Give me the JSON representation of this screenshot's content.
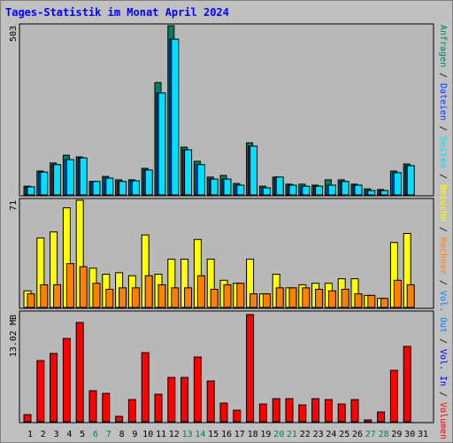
{
  "chart_data": [
    {
      "type": "bar",
      "title": "Tages-Statistik im Monat April 2024",
      "ylim": [
        0,
        503
      ],
      "yticks": [
        503
      ],
      "series": [
        {
          "name": "Anfragen",
          "color": "#00805c",
          "values": [
            26,
            71,
            95,
            118,
            113,
            40,
            55,
            45,
            45,
            79,
            334,
            503,
            142,
            100,
            53,
            58,
            34,
            155,
            26,
            53,
            32,
            32,
            29,
            45,
            45,
            32,
            18,
            16,
            71,
            92,
            0
          ]
        },
        {
          "name": "Dateien",
          "color": "#0040ff",
          "values": [
            24,
            68,
            90,
            105,
            110,
            40,
            50,
            40,
            42,
            74,
            303,
            463,
            134,
            90,
            47,
            47,
            29,
            145,
            21,
            53,
            29,
            26,
            26,
            29,
            40,
            29,
            13,
            13,
            66,
            87,
            0
          ]
        },
        {
          "name": "Seiten",
          "color": "#00e0ff",
          "values": [
            24,
            68,
            90,
            105,
            110,
            40,
            50,
            40,
            42,
            74,
            303,
            463,
            134,
            90,
            47,
            47,
            29,
            145,
            21,
            53,
            29,
            26,
            26,
            29,
            40,
            29,
            13,
            13,
            66,
            87,
            0
          ]
        }
      ]
    },
    {
      "type": "bar",
      "ylim": [
        0,
        71
      ],
      "yticks": [
        71
      ],
      "series": [
        {
          "name": "Besuche",
          "color": "#ffff00",
          "values": [
            11,
            46,
            50,
            66,
            71,
            26,
            22,
            23,
            21,
            48,
            22,
            32,
            32,
            45,
            32,
            18,
            16,
            32,
            9,
            22,
            13,
            15,
            16,
            16,
            19,
            19,
            8,
            6,
            43,
            49,
            0
          ]
        },
        {
          "name": "Rechner",
          "color": "#ff8000",
          "values": [
            9,
            15,
            15,
            29,
            27,
            16,
            12,
            13,
            13,
            21,
            15,
            13,
            13,
            21,
            12,
            15,
            16,
            9,
            9,
            13,
            13,
            13,
            12,
            11,
            12,
            9,
            8,
            6,
            18,
            15,
            0
          ]
        }
      ]
    },
    {
      "type": "bar",
      "ylim": [
        0,
        13.02
      ],
      "yticks": [
        {
          "value": 13.02,
          "label": "13.02 MB"
        }
      ],
      "legend": [
        {
          "name": "Vol. Out",
          "color": "#0080ff"
        },
        {
          "name": "Vol. In",
          "color": "#0000ff"
        }
      ],
      "legend_separator": " / ",
      "series": [
        {
          "name": "Volumen",
          "color": "#ff0000",
          "values": [
            0.86,
            7.42,
            8.29,
            10.11,
            12.05,
            3.77,
            3.44,
            0.65,
            2.69,
            8.39,
            3.34,
            5.38,
            5.38,
            7.86,
            4.95,
            2.26,
            1.4,
            13.02,
            2.15,
            2.8,
            2.8,
            2.04,
            2.8,
            2.69,
            2.15,
            2.69,
            0.22,
            1.18,
            6.24,
            9.15,
            0
          ]
        }
      ],
      "categories": [
        "1",
        "2",
        "3",
        "4",
        "5",
        "6",
        "7",
        "8",
        "9",
        "10",
        "11",
        "12",
        "13",
        "14",
        "15",
        "16",
        "17",
        "18",
        "19",
        "20",
        "21",
        "22",
        "23",
        "24",
        "25",
        "26",
        "27",
        "28",
        "29",
        "30",
        "31"
      ],
      "category_colors": [
        "#000000",
        "#000000",
        "#000000",
        "#000000",
        "#000000",
        "#00805c",
        "#00805c",
        "#000000",
        "#000000",
        "#000000",
        "#000000",
        "#000000",
        "#00805c",
        "#00805c",
        "#000000",
        "#000000",
        "#000000",
        "#000000",
        "#000000",
        "#00805c",
        "#00805c",
        "#000000",
        "#000000",
        "#000000",
        "#000000",
        "#000000",
        "#00805c",
        "#00805c",
        "#000000",
        "#000000",
        "#000000"
      ]
    }
  ]
}
